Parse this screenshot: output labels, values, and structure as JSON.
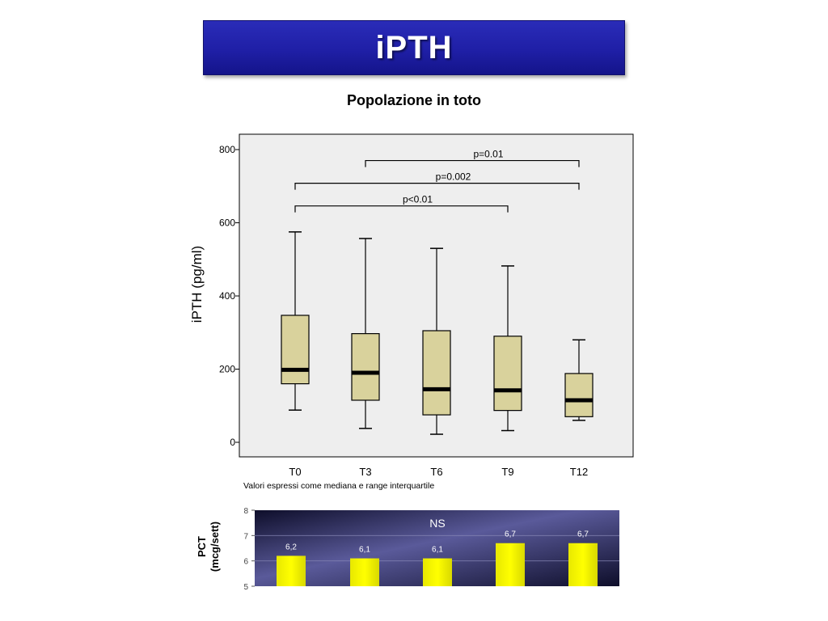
{
  "header": {
    "title": "iPTH"
  },
  "subtitle": "Popolazione in toto",
  "note": "Valori espressi come mediana e range interquartile",
  "colors": {
    "banner": "#1f1fa6",
    "plot_bg": "#eeeeee",
    "box_fill": "#d9d29c",
    "bar_fill": "#ffff00",
    "bar_panel_dark": "#0e0e2a",
    "bar_panel_light": "#5a5a9a"
  },
  "chart_data": [
    {
      "type": "boxplot",
      "ylabel": "iPTH (pg/ml)",
      "ylim": [
        0,
        800
      ],
      "yticks": [
        "0",
        "200",
        "400",
        "600",
        "800"
      ],
      "ytick_values": [
        0,
        200,
        400,
        600,
        800
      ],
      "categories": [
        "T0",
        "T3",
        "T6",
        "T9",
        "T12"
      ],
      "boxes": [
        {
          "label": "T0",
          "min": 88,
          "q1": 160,
          "median": 198,
          "q3": 347,
          "max": 575
        },
        {
          "label": "T3",
          "min": 38,
          "q1": 115,
          "median": 190,
          "q3": 297,
          "max": 557
        },
        {
          "label": "T6",
          "min": 22,
          "q1": 75,
          "median": 145,
          "q3": 305,
          "max": 530
        },
        {
          "label": "T9",
          "min": 32,
          "q1": 87,
          "median": 142,
          "q3": 290,
          "max": 482
        },
        {
          "label": "T12",
          "min": 60,
          "q1": 70,
          "median": 115,
          "q3": 188,
          "max": 280
        }
      ],
      "annotations": [
        {
          "text": "p=0.01",
          "from": "T3",
          "to": "T12",
          "y": 770
        },
        {
          "text": "p=0.002",
          "from": "T0",
          "to": "T12",
          "y": 708
        },
        {
          "text": "p<0.01",
          "from": "T0",
          "to": "T9",
          "y": 646
        }
      ],
      "grid": false
    },
    {
      "type": "bar",
      "ylabel": [
        "PCT",
        "(mcg/sett)"
      ],
      "ylim": [
        5,
        8
      ],
      "yticks": [
        "5",
        "6",
        "7",
        "8"
      ],
      "ytick_values": [
        5,
        6,
        7,
        8
      ],
      "categories": [
        "T0",
        "T3",
        "T6",
        "T9",
        "T12"
      ],
      "values": [
        6.2,
        6.1,
        6.1,
        6.7,
        6.7
      ],
      "value_labels": [
        "6,2",
        "6,1",
        "6,1",
        "6,7",
        "6,7"
      ],
      "annotation": "NS",
      "grid": true
    }
  ]
}
